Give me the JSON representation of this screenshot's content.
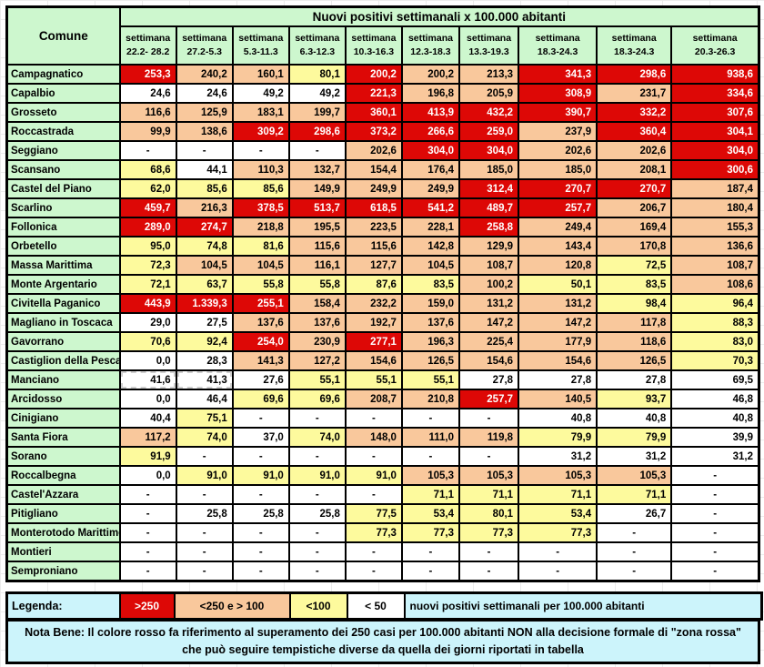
{
  "colors": {
    "R": "#DD0806",
    "O": "#F9C89C",
    "Y": "#FDFA9D",
    "W": "#FFFFFF",
    "G": "#CDF7CE",
    "C": "#CCF4FB"
  },
  "chart_data": {
    "type": "table",
    "title": "Nuovi positivi settimanali x 100.000 abitanti",
    "row_header": "Comune",
    "columns": [
      "settimana 22.2- 28.2",
      "settimana 27.2-5.3",
      "settimana 5.3-11.3",
      "settimana 6.3-12.3",
      "settimana 10.3-16.3",
      "settimana 12.3-18.3",
      "settimana 13.3-19.3",
      "settimana 18.3-24.3",
      "settimana 18.3-24.3",
      "settimana 20.3-26.3"
    ],
    "color_key": {
      "R": ">250",
      "O": "<250 e > 100",
      "Y": "<100",
      "W": "< 50"
    },
    "rows": [
      {
        "comune": "Campagnatico",
        "values": [
          "253,3",
          "240,2",
          "160,1",
          "80,1",
          "200,2",
          "200,2",
          "213,3",
          "341,3",
          "298,6",
          "938,6"
        ],
        "colors": [
          "R",
          "O",
          "O",
          "Y",
          "R",
          "O",
          "O",
          "R",
          "R",
          "R"
        ]
      },
      {
        "comune": "Capalbio",
        "values": [
          "24,6",
          "24,6",
          "49,2",
          "49,2",
          "221,3",
          "196,8",
          "205,9",
          "308,9",
          "231,7",
          "334,6"
        ],
        "colors": [
          "W",
          "W",
          "W",
          "W",
          "R",
          "O",
          "O",
          "R",
          "O",
          "R"
        ]
      },
      {
        "comune": "Grosseto",
        "values": [
          "116,6",
          "125,9",
          "183,1",
          "199,7",
          "360,1",
          "413,9",
          "432,2",
          "390,7",
          "332,2",
          "307,6"
        ],
        "colors": [
          "O",
          "O",
          "O",
          "O",
          "R",
          "R",
          "R",
          "R",
          "R",
          "R"
        ]
      },
      {
        "comune": "Roccastrada",
        "values": [
          "99,9",
          "138,6",
          "309,2",
          "298,6",
          "373,2",
          "266,6",
          "259,0",
          "237,9",
          "360,4",
          "304,1"
        ],
        "colors": [
          "O",
          "O",
          "R",
          "R",
          "R",
          "R",
          "R",
          "O",
          "R",
          "R"
        ]
      },
      {
        "comune": "Seggiano",
        "values": [
          "-",
          "-",
          "-",
          "-",
          "202,6",
          "304,0",
          "304,0",
          "202,6",
          "202,6",
          "304,0"
        ],
        "colors": [
          "W",
          "W",
          "W",
          "W",
          "O",
          "R",
          "R",
          "O",
          "O",
          "R"
        ]
      },
      {
        "comune": "Scansano",
        "values": [
          "68,6",
          "44,1",
          "110,3",
          "132,7",
          "154,4",
          "176,4",
          "185,0",
          "185,0",
          "208,1",
          "300,6"
        ],
        "colors": [
          "Y",
          "W",
          "O",
          "O",
          "O",
          "O",
          "O",
          "O",
          "O",
          "R"
        ]
      },
      {
        "comune": "Castel del Piano",
        "values": [
          "62,0",
          "85,6",
          "85,6",
          "149,9",
          "249,9",
          "249,9",
          "312,4",
          "270,7",
          "270,7",
          "187,4"
        ],
        "colors": [
          "Y",
          "Y",
          "Y",
          "O",
          "O",
          "O",
          "R",
          "R",
          "R",
          "O"
        ]
      },
      {
        "comune": "Scarlino",
        "values": [
          "459,7",
          "216,3",
          "378,5",
          "513,7",
          "618,5",
          "541,2",
          "489,7",
          "257,7",
          "206,7",
          "180,4"
        ],
        "colors": [
          "R",
          "O",
          "R",
          "R",
          "R",
          "R",
          "R",
          "R",
          "O",
          "O"
        ]
      },
      {
        "comune": "Follonica",
        "values": [
          "289,0",
          "274,7",
          "218,8",
          "195,5",
          "223,5",
          "228,1",
          "258,8",
          "249,4",
          "169,4",
          "155,3"
        ],
        "colors": [
          "R",
          "R",
          "O",
          "O",
          "O",
          "O",
          "R",
          "O",
          "O",
          "O"
        ]
      },
      {
        "comune": "Orbetello",
        "values": [
          "95,0",
          "74,8",
          "81,6",
          "115,6",
          "115,6",
          "142,8",
          "129,9",
          "143,4",
          "170,8",
          "136,6"
        ],
        "colors": [
          "Y",
          "Y",
          "Y",
          "O",
          "O",
          "O",
          "O",
          "O",
          "O",
          "O"
        ]
      },
      {
        "comune": "Massa Marittima",
        "values": [
          "72,3",
          "104,5",
          "104,5",
          "116,1",
          "127,7",
          "104,5",
          "108,7",
          "120,8",
          "72,5",
          "108,7"
        ],
        "colors": [
          "Y",
          "O",
          "O",
          "O",
          "O",
          "O",
          "O",
          "O",
          "Y",
          "O"
        ]
      },
      {
        "comune": "Monte Argentario",
        "values": [
          "72,1",
          "63,7",
          "55,8",
          "55,8",
          "87,6",
          "83,5",
          "100,2",
          "50,1",
          "83,5",
          "108,6"
        ],
        "colors": [
          "Y",
          "Y",
          "Y",
          "Y",
          "Y",
          "Y",
          "O",
          "Y",
          "Y",
          "O"
        ]
      },
      {
        "comune": "Civitella Paganico",
        "values": [
          "443,9",
          "1.339,3",
          "255,1",
          "158,4",
          "232,2",
          "159,0",
          "131,2",
          "131,2",
          "98,4",
          "96,4"
        ],
        "colors": [
          "R",
          "R",
          "R",
          "O",
          "O",
          "O",
          "O",
          "O",
          "Y",
          "Y"
        ]
      },
      {
        "comune": "Magliano in Toscaca",
        "values": [
          "29,0",
          "27,5",
          "137,6",
          "137,6",
          "192,7",
          "137,6",
          "147,2",
          "147,2",
          "117,8",
          "88,3"
        ],
        "colors": [
          "W",
          "W",
          "O",
          "O",
          "O",
          "O",
          "O",
          "O",
          "O",
          "Y"
        ]
      },
      {
        "comune": "Gavorrano",
        "values": [
          "70,6",
          "92,4",
          "254,0",
          "230,9",
          "277,1",
          "196,3",
          "225,4",
          "177,9",
          "118,6",
          "83,0"
        ],
        "colors": [
          "Y",
          "Y",
          "R",
          "O",
          "R",
          "O",
          "O",
          "O",
          "O",
          "Y"
        ]
      },
      {
        "comune": "Castiglion della Pescaia",
        "values": [
          "0,0",
          "28,3",
          "141,3",
          "127,2",
          "154,6",
          "126,5",
          "154,6",
          "154,6",
          "126,5",
          "70,3"
        ],
        "colors": [
          "W",
          "W",
          "O",
          "O",
          "O",
          "O",
          "O",
          "O",
          "O",
          "Y"
        ]
      },
      {
        "comune": "Manciano",
        "values": [
          "41,6",
          "41,3",
          "27,6",
          "55,1",
          "55,1",
          "55,1",
          "27,8",
          "27,8",
          "27,8",
          "69,5"
        ],
        "colors": [
          "W",
          "W",
          "W",
          "Y",
          "Y",
          "Y",
          "W",
          "W",
          "W",
          "W"
        ]
      },
      {
        "comune": "Arcidosso",
        "values": [
          "0,0",
          "46,4",
          "69,6",
          "69,6",
          "208,7",
          "210,8",
          "257,7",
          "140,5",
          "93,7",
          "46,8"
        ],
        "colors": [
          "W",
          "W",
          "Y",
          "Y",
          "O",
          "O",
          "R",
          "O",
          "Y",
          "W"
        ]
      },
      {
        "comune": "Cinigiano",
        "values": [
          "40,4",
          "75,1",
          "-",
          "-",
          "-",
          "-",
          "-",
          "40,8",
          "40,8",
          "40,8"
        ],
        "colors": [
          "W",
          "Y",
          "W",
          "W",
          "W",
          "W",
          "W",
          "W",
          "W",
          "W"
        ]
      },
      {
        "comune": "Santa Fiora",
        "values": [
          "117,2",
          "74,0",
          "37,0",
          "74,0",
          "148,0",
          "111,0",
          "119,8",
          "79,9",
          "79,9",
          "39,9"
        ],
        "colors": [
          "O",
          "Y",
          "W",
          "Y",
          "O",
          "O",
          "O",
          "Y",
          "Y",
          "W"
        ]
      },
      {
        "comune": "Sorano",
        "values": [
          "91,9",
          "-",
          "-",
          "-",
          "-",
          "-",
          "-",
          "31,2",
          "31,2",
          "31,2"
        ],
        "colors": [
          "Y",
          "W",
          "W",
          "W",
          "W",
          "W",
          "W",
          "W",
          "W",
          "W"
        ]
      },
      {
        "comune": "Roccalbegna",
        "values": [
          "0,0",
          "91,0",
          "91,0",
          "91,0",
          "91,0",
          "105,3",
          "105,3",
          "105,3",
          "105,3",
          "-"
        ],
        "colors": [
          "W",
          "Y",
          "Y",
          "Y",
          "Y",
          "O",
          "O",
          "O",
          "O",
          "W"
        ]
      },
      {
        "comune": "Castel'Azzara",
        "values": [
          "-",
          "-",
          "-",
          "-",
          "-",
          "71,1",
          "71,1",
          "71,1",
          "71,1",
          "-"
        ],
        "colors": [
          "W",
          "W",
          "W",
          "W",
          "W",
          "Y",
          "Y",
          "Y",
          "Y",
          "W"
        ]
      },
      {
        "comune": "Pitigliano",
        "values": [
          "-",
          "25,8",
          "25,8",
          "25,8",
          "77,5",
          "53,4",
          "80,1",
          "53,4",
          "26,7",
          "-"
        ],
        "colors": [
          "W",
          "W",
          "W",
          "W",
          "Y",
          "Y",
          "Y",
          "Y",
          "W",
          "W"
        ]
      },
      {
        "comune": "Monterotodo Marittimo",
        "values": [
          "-",
          "-",
          "-",
          "-",
          "77,3",
          "77,3",
          "77,3",
          "77,3",
          "-",
          "-"
        ],
        "colors": [
          "W",
          "W",
          "W",
          "W",
          "Y",
          "Y",
          "Y",
          "Y",
          "W",
          "W"
        ]
      },
      {
        "comune": "Montieri",
        "values": [
          "-",
          "-",
          "-",
          "-",
          "-",
          "-",
          "-",
          "-",
          "-",
          "-"
        ],
        "colors": [
          "W",
          "W",
          "W",
          "W",
          "W",
          "W",
          "W",
          "W",
          "W",
          "W"
        ]
      },
      {
        "comune": "Semproniano",
        "values": [
          "-",
          "-",
          "-",
          "-",
          "-",
          "-",
          "-",
          "-",
          "-",
          "-"
        ],
        "colors": [
          "W",
          "W",
          "W",
          "W",
          "W",
          "W",
          "W",
          "W",
          "W",
          "W"
        ]
      }
    ]
  },
  "selection_marquee": {
    "row_index": 16,
    "col_indices": [
      0,
      1
    ]
  },
  "legend": {
    "label": "Legenda:",
    "items": [
      {
        "text": ">250",
        "color": "R"
      },
      {
        "text": "<250 e > 100",
        "color": "O"
      },
      {
        "text": "<100",
        "color": "Y"
      },
      {
        "text": "< 50",
        "color": "W"
      }
    ],
    "description": "nuovi positivi settimanali per 100.000 abitanti"
  },
  "nota_bene": "Nota Bene: Il colore rosso fa riferimento al superamento dei 250 casi per 100.000 abitanti NON alla decisione formale di \"zona rossa\" che può seguire tempistiche diverse da quella dei giorni riportati in tabella"
}
